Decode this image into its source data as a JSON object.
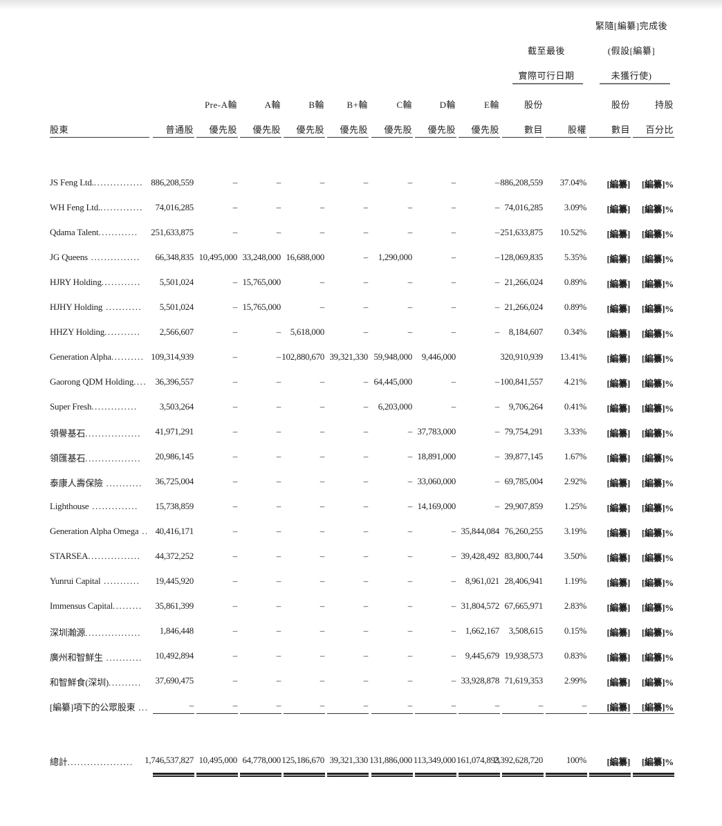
{
  "header": {
    "group_post": [
      "緊隨[編纂]完成後",
      "(假設[編纂]",
      "未獲行使)"
    ],
    "group_latest": [
      "截至最後",
      "實際可行日期"
    ],
    "shareholder": "股東",
    "columns": [
      {
        "top": "",
        "bottom": "普通股"
      },
      {
        "top": "Pre-A輪",
        "bottom": "優先股"
      },
      {
        "top": "A輪",
        "bottom": "優先股"
      },
      {
        "top": "B輪",
        "bottom": "優先股"
      },
      {
        "top": "B+輪",
        "bottom": "優先股"
      },
      {
        "top": "C輪",
        "bottom": "優先股"
      },
      {
        "top": "D輪",
        "bottom": "優先股"
      },
      {
        "top": "E輪",
        "bottom": "優先股"
      },
      {
        "top": "股份",
        "bottom": "數目"
      },
      {
        "top": "",
        "bottom": "股權"
      },
      {
        "top": "股份",
        "bottom": "數目"
      },
      {
        "top": "持股",
        "bottom": "百分比"
      }
    ]
  },
  "rows": [
    {
      "name": "JS Feng Ltd.",
      "dots": "...............",
      "values": [
        "886,208,559",
        "–",
        "–",
        "–",
        "–",
        "–",
        "–",
        "–",
        "886,208,559",
        "37.04%",
        "[編纂]",
        "[編纂]%"
      ]
    },
    {
      "name": "WH Feng Ltd.",
      "dots": ".............",
      "values": [
        "74,016,285",
        "–",
        "–",
        "–",
        "–",
        "–",
        "–",
        "–",
        "74,016,285",
        "3.09%",
        "[編纂]",
        "[編纂]%"
      ]
    },
    {
      "name": "Qdama Talent",
      "dots": "............",
      "values": [
        "251,633,875",
        "–",
        "–",
        "–",
        "–",
        "–",
        "–",
        "–",
        "251,633,875",
        "10.52%",
        "[編纂]",
        "[編纂]%"
      ]
    },
    {
      "name": "JG Queens",
      "dots": " ...............",
      "values": [
        "66,348,835",
        "10,495,000",
        "33,248,000",
        "16,688,000",
        "–",
        "1,290,000",
        "–",
        "–",
        "128,069,835",
        "5.35%",
        "[編纂]",
        "[編纂]%"
      ]
    },
    {
      "name": "HJRY Holding",
      "dots": "............",
      "values": [
        "5,501,024",
        "–",
        "15,765,000",
        "–",
        "–",
        "–",
        "–",
        "–",
        "21,266,024",
        "0.89%",
        "[編纂]",
        "[編纂]%"
      ]
    },
    {
      "name": "HJHY Holding",
      "dots": " ...........",
      "values": [
        "5,501,024",
        "–",
        "15,765,000",
        "–",
        "–",
        "–",
        "–",
        "–",
        "21,266,024",
        "0.89%",
        "[編纂]",
        "[編纂]%"
      ]
    },
    {
      "name": "HHZY Holding",
      "dots": "...........",
      "values": [
        "2,566,607",
        "–",
        "–",
        "5,618,000",
        "–",
        "–",
        "–",
        "–",
        "8,184,607",
        "0.34%",
        "[編纂]",
        "[編纂]%"
      ]
    },
    {
      "name": "Generation Alpha",
      "dots": "..........",
      "values": [
        "109,314,939",
        "–",
        "–",
        "102,880,670",
        "39,321,330",
        "59,948,000",
        "9,446,000",
        "",
        "320,910,939",
        "13.41%",
        "[編纂]",
        "[編纂]%"
      ]
    },
    {
      "name": "Gaorong QDM Holding",
      "dots": ".....",
      "values": [
        "36,396,557",
        "–",
        "–",
        "–",
        "–",
        "64,445,000",
        "–",
        "–",
        "100,841,557",
        "4.21%",
        "[編纂]",
        "[編纂]%"
      ]
    },
    {
      "name": "Super Fresh",
      "dots": "..............",
      "values": [
        "3,503,264",
        "–",
        "–",
        "–",
        "–",
        "6,203,000",
        "–",
        "–",
        "9,706,264",
        "0.41%",
        "[編纂]",
        "[編纂]%"
      ]
    },
    {
      "name": "領譽基石",
      "dots": ".................",
      "values": [
        "41,971,291",
        "–",
        "–",
        "–",
        "–",
        "–",
        "37,783,000",
        "–",
        "79,754,291",
        "3.33%",
        "[編纂]",
        "[編纂]%"
      ]
    },
    {
      "name": "領匯基石",
      "dots": ".................",
      "values": [
        "20,986,145",
        "–",
        "–",
        "–",
        "–",
        "–",
        "18,891,000",
        "–",
        "39,877,145",
        "1.67%",
        "[編纂]",
        "[編纂]%"
      ]
    },
    {
      "name": "泰康人壽保險",
      "dots": " ...........",
      "values": [
        "36,725,004",
        "–",
        "–",
        "–",
        "–",
        "–",
        "33,060,000",
        "–",
        "69,785,004",
        "2.92%",
        "[編纂]",
        "[編纂]%"
      ]
    },
    {
      "name": "Lighthouse",
      "dots": " ..............",
      "values": [
        "15,738,859",
        "–",
        "–",
        "–",
        "–",
        "–",
        "14,169,000",
        "–",
        "29,907,859",
        "1.25%",
        "[編纂]",
        "[編纂]%"
      ]
    },
    {
      "name": "Generation Alpha Omega",
      "dots": " ...",
      "values": [
        "40,416,171",
        "–",
        "–",
        "–",
        "–",
        "–",
        "–",
        "35,844,084",
        "76,260,255",
        "3.19%",
        "[編纂]",
        "[編纂]%"
      ]
    },
    {
      "name": "STARSEA",
      "dots": "................",
      "values": [
        "44,372,252",
        "–",
        "–",
        "–",
        "–",
        "–",
        "–",
        "39,428,492",
        "83,800,744",
        "3.50%",
        "[編纂]",
        "[編纂]%"
      ]
    },
    {
      "name": "Yunrui Capital",
      "dots": " ...........",
      "values": [
        "19,445,920",
        "–",
        "–",
        "–",
        "–",
        "–",
        "–",
        "8,961,021",
        "28,406,941",
        "1.19%",
        "[編纂]",
        "[編纂]%"
      ]
    },
    {
      "name": "Immensus Capital",
      "dots": ".........",
      "values": [
        "35,861,399",
        "–",
        "–",
        "–",
        "–",
        "–",
        "–",
        "31,804,572",
        "67,665,971",
        "2.83%",
        "[編纂]",
        "[編纂]%"
      ]
    },
    {
      "name": "深圳瀚源",
      "dots": ".................",
      "values": [
        "1,846,448",
        "–",
        "–",
        "–",
        "–",
        "–",
        "–",
        "1,662,167",
        "3,508,615",
        "0.15%",
        "[編纂]",
        "[編纂]%"
      ]
    },
    {
      "name": "廣州和智鮮生",
      "dots": " ...........",
      "values": [
        "10,492,894",
        "–",
        "–",
        "–",
        "–",
        "–",
        "–",
        "9,445,679",
        "19,938,573",
        "0.83%",
        "[編纂]",
        "[編纂]%"
      ]
    },
    {
      "name": "和智鮮食(深圳)",
      "dots": "..........",
      "values": [
        "37,690,475",
        "–",
        "–",
        "–",
        "–",
        "–",
        "–",
        "33,928,878",
        "71,619,353",
        "2.99%",
        "[編纂]",
        "[編纂]%"
      ]
    },
    {
      "name": "[編纂]項下的公眾股東",
      "dots": " ....",
      "values": [
        "–",
        "–",
        "–",
        "–",
        "–",
        "–",
        "–",
        "–",
        "–",
        "–",
        "[編纂]",
        "[編纂]%"
      ]
    }
  ],
  "total": {
    "name": "總計",
    "dots": "....................",
    "values": [
      "1,746,537,827",
      "10,495,000",
      "64,778,000",
      "125,186,670",
      "39,321,330",
      "131,886,000",
      "113,349,000",
      "161,074,893",
      "2,392,628,720",
      "100%",
      "[編纂]",
      "[編纂]%"
    ]
  }
}
